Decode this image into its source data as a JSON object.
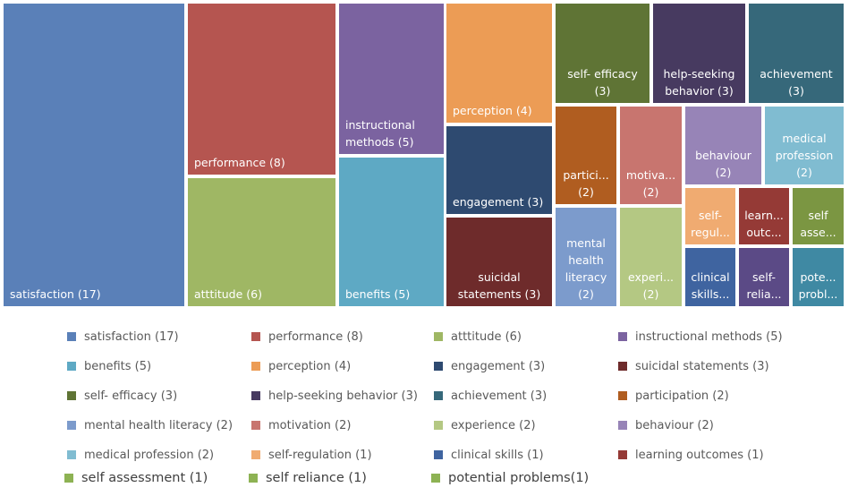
{
  "chart_data": {
    "type": "treemap",
    "title": "",
    "legend_position": "bottom",
    "items": [
      {
        "name": "satisfaction",
        "value": 17,
        "label": "satisfaction (17)",
        "cell_text": "satisfaction (17)",
        "color": "#5a80b8",
        "legend_color": "#5a80b8"
      },
      {
        "name": "performance",
        "value": 8,
        "label": "performance (8)",
        "cell_text": "performance (8)",
        "color": "#b55550",
        "legend_color": "#b55550"
      },
      {
        "name": "atttitude",
        "value": 6,
        "label": "atttitude (6)",
        "cell_text": "atttitude (6)",
        "color": "#9fb764",
        "legend_color": "#9fb764"
      },
      {
        "name": "instructional methods",
        "value": 5,
        "label": "instructional methods (5)",
        "cell_text": "instructional\nmethods (5)",
        "color": "#7b63a0",
        "legend_color": "#7b63a0"
      },
      {
        "name": "benefits",
        "value": 5,
        "label": "benefits (5)",
        "cell_text": "benefits (5)",
        "color": "#5ea9c4",
        "legend_color": "#5ea9c4"
      },
      {
        "name": "perception",
        "value": 4,
        "label": "perception (4)",
        "cell_text": "perception (4)",
        "color": "#ec9c55",
        "legend_color": "#ec9c55"
      },
      {
        "name": "engagement",
        "value": 3,
        "label": "engagement (3)",
        "cell_text": "engagement (3)",
        "color": "#2e4a70",
        "legend_color": "#2e4a70"
      },
      {
        "name": "suicidal statements",
        "value": 3,
        "label": "suicidal statements (3)",
        "cell_text": "suicidal\nstatements (3)",
        "color": "#6e2b2b",
        "legend_color": "#6e2b2b"
      },
      {
        "name": "self- efficacy",
        "value": 3,
        "label": "self- efficacy (3)",
        "cell_text": "self- efficacy\n(3)",
        "color": "#5f7435",
        "legend_color": "#5f7435"
      },
      {
        "name": "help-seeking behavior",
        "value": 3,
        "label": "help-seeking behavior (3)",
        "cell_text": "help-seeking\nbehavior (3)",
        "color": "#473a60",
        "legend_color": "#473a60"
      },
      {
        "name": "achievement",
        "value": 3,
        "label": "achievement (3)",
        "cell_text": "achievement\n(3)",
        "color": "#36687a",
        "legend_color": "#36687a"
      },
      {
        "name": "participation",
        "value": 2,
        "label": "participation (2)",
        "cell_text": "partici...\n(2)",
        "color": "#b05d20",
        "legend_color": "#b05d20"
      },
      {
        "name": "mental health literacy",
        "value": 2,
        "label": "mental health literacy (2)",
        "cell_text": "mental\nhealth\nliteracy\n(2)",
        "color": "#7c9bcc",
        "legend_color": "#7c9bcc"
      },
      {
        "name": "motivation",
        "value": 2,
        "label": "motivation (2)",
        "cell_text": "motiva...\n(2)",
        "color": "#c8756f",
        "legend_color": "#c8756f"
      },
      {
        "name": "experience",
        "value": 2,
        "label": "experience (2)",
        "cell_text": "experi...\n(2)",
        "color": "#b4c883",
        "legend_color": "#b4c883"
      },
      {
        "name": "behaviour",
        "value": 2,
        "label": "behaviour (2)",
        "cell_text": "behaviour\n(2)",
        "color": "#9784b7",
        "legend_color": "#9784b7"
      },
      {
        "name": "medical profession",
        "value": 2,
        "label": "medical profession (2)",
        "cell_text": "medical\nprofession\n(2)",
        "color": "#80bcd1",
        "legend_color": "#80bcd1"
      },
      {
        "name": "self-regulation",
        "value": 1,
        "label": "self-regulation (1)",
        "cell_text": "self-\nregul...",
        "color": "#f0ab71",
        "legend_color": "#f0ab71"
      },
      {
        "name": "clinical skills",
        "value": 1,
        "label": "clinical skills (1)",
        "cell_text": "clinical\nskills...",
        "color": "#3f64a0",
        "legend_color": "#3f64a0"
      },
      {
        "name": "learning outcomes",
        "value": 1,
        "label": "learning outcomes (1)",
        "cell_text": "learn...\noutc...",
        "color": "#953a36",
        "legend_color": "#953a36"
      },
      {
        "name": "self assessment",
        "value": 1,
        "label": "self assessment (1)",
        "cell_text": "self\nasse...",
        "color": "#7b9642",
        "legend_color": "#8db253"
      },
      {
        "name": "self reliance",
        "value": 1,
        "label": "self reliance (1)",
        "cell_text": "self-\nrelia...",
        "color": "#5b4a86",
        "legend_color": "#8db253"
      },
      {
        "name": "potential problems",
        "value": 1,
        "label": "potential problems(1)",
        "cell_text": "pote...\nprobl...",
        "color": "#3f89a3",
        "legend_color": "#8db253"
      }
    ]
  }
}
